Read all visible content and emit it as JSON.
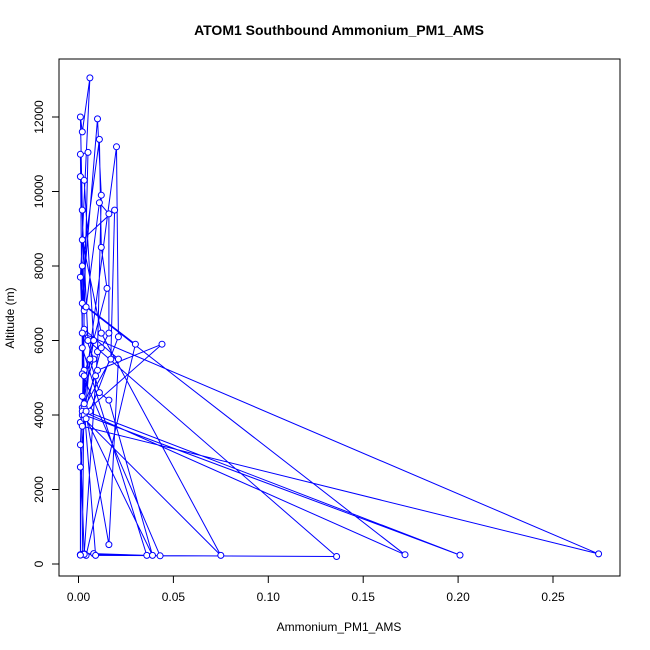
{
  "chart_data": {
    "type": "line",
    "title": "ATOM1 Southbound Ammonium_PM1_AMS",
    "xlabel": "Ammonium_PM1_AMS",
    "ylabel": "Altitude (m)",
    "xlim": [
      -0.01,
      0.285
    ],
    "ylim": [
      -300,
      13500
    ],
    "xticks": [
      0.0,
      0.05,
      0.1,
      0.15,
      0.2,
      0.25
    ],
    "xtick_labels": [
      "0.00",
      "0.05",
      "0.10",
      "0.15",
      "0.20",
      "0.25"
    ],
    "yticks": [
      0,
      2000,
      4000,
      6000,
      8000,
      10000,
      12000
    ],
    "ytick_labels": [
      "0",
      "2000",
      "4000",
      "6000",
      "8000",
      "10000",
      "12000"
    ],
    "grid": false,
    "marker": "open-circle",
    "series_color": "#0000ff",
    "series": [
      {
        "points": [
          [
            0.001,
            250
          ],
          [
            0.002,
            260
          ],
          [
            0.003,
            5200
          ],
          [
            0.001,
            7700
          ],
          [
            0.006,
            13050
          ],
          [
            0.002,
            11600
          ],
          [
            0.001,
            12000
          ],
          [
            0.002,
            9500
          ],
          [
            0.003,
            6200
          ],
          [
            0.008,
            5500
          ],
          [
            0.002,
            4500
          ],
          [
            0.001,
            3200
          ],
          [
            0.003,
            270
          ],
          [
            0.008,
            280
          ],
          [
            0.036,
            230
          ],
          [
            0.002,
            5800
          ],
          [
            0.001,
            11000
          ],
          [
            0.005,
            11050
          ],
          [
            0.003,
            6800
          ],
          [
            0.002,
            4000
          ],
          [
            0.001,
            250
          ],
          [
            0.004,
            230
          ],
          [
            0.03,
            5900
          ],
          [
            0.002,
            7000
          ],
          [
            0.01,
            11950
          ],
          [
            0.012,
            9900
          ],
          [
            0.01,
            5700
          ],
          [
            0.003,
            260
          ],
          [
            0.043,
            220
          ],
          [
            0.002,
            5100
          ],
          [
            0.002,
            8000
          ],
          [
            0.011,
            11400
          ],
          [
            0.012,
            8500
          ],
          [
            0.015,
            7400
          ],
          [
            0.003,
            5050
          ],
          [
            0.002,
            4200
          ],
          [
            0.001,
            3800
          ],
          [
            0.02,
            11200
          ],
          [
            0.021,
            6100
          ],
          [
            0.006,
            4100
          ],
          [
            0.003,
            3900
          ],
          [
            0.075,
            230
          ],
          [
            0.012,
            6200
          ],
          [
            0.002,
            8700
          ],
          [
            0.019,
            9500
          ],
          [
            0.017,
            5500
          ],
          [
            0.003,
            4200
          ],
          [
            0.009,
            230
          ],
          [
            0.136,
            200
          ],
          [
            0.005,
            6000
          ],
          [
            0.001,
            10400
          ],
          [
            0.003,
            10300
          ],
          [
            0.008,
            6000
          ],
          [
            0.002,
            4100
          ],
          [
            0.172,
            250
          ],
          [
            0.004,
            6900
          ],
          [
            0.011,
            9700
          ],
          [
            0.016,
            9400
          ],
          [
            0.016,
            6200
          ],
          [
            0.012,
            5800
          ],
          [
            0.003,
            4000
          ],
          [
            0.201,
            240
          ],
          [
            0.004,
            4100
          ],
          [
            0.044,
            5900
          ],
          [
            0.01,
            5200
          ],
          [
            0.009,
            5050
          ],
          [
            0.003,
            4300
          ],
          [
            0.016,
            520
          ],
          [
            0.021,
            5500
          ],
          [
            0.003,
            6300
          ],
          [
            0.002,
            3700
          ],
          [
            0.274,
            270
          ],
          [
            0.002,
            6200
          ],
          [
            0.004,
            3900
          ],
          [
            0.039,
            230
          ],
          [
            0.016,
            4400
          ],
          [
            0.011,
            4600
          ],
          [
            0.006,
            5500
          ],
          [
            0.001,
            2600
          ],
          [
            0.001,
            240
          ]
        ]
      }
    ]
  }
}
